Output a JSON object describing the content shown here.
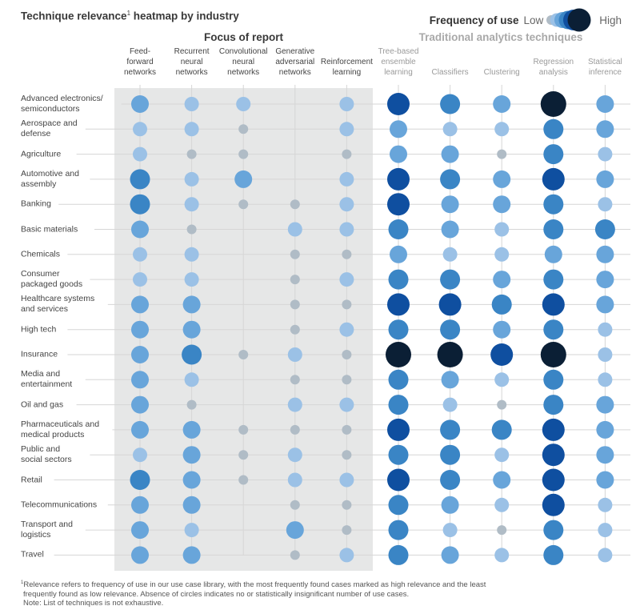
{
  "title": "Technique relevance",
  "title_sup": "1",
  "title_rest": " heatmap by industry",
  "legend": {
    "label": "Frequency of use",
    "low": "Low",
    "high": "High",
    "levels": [
      1,
      2,
      3,
      4,
      5,
      6
    ]
  },
  "groups": {
    "focus": "Focus of report",
    "traditional": "Traditional analytics techniques"
  },
  "colors": {
    "level1": "#b0bcc6",
    "level2": "#9bc1e6",
    "level3": "#68a5da",
    "level4": "#3a85c5",
    "level5": "#0f4fa0",
    "level6": "#0b1f35",
    "panel": "#e6e7e7",
    "gridline": "#d6d6d6"
  },
  "chart_data": {
    "type": "heatmap",
    "title": "Technique relevance heatmap by industry",
    "value_scale": "Frequency of use: 0 = absent, 1 = low ... 6 = high",
    "columns": [
      {
        "name": "Feed-forward networks",
        "lines": [
          "Feed-",
          "forward",
          "networks"
        ],
        "group": "focus"
      },
      {
        "name": "Recurrent neural networks",
        "lines": [
          "Recurrent",
          "neural",
          "networks"
        ],
        "group": "focus"
      },
      {
        "name": "Convolutional neural networks",
        "lines": [
          "Convolutional",
          "neural",
          "networks"
        ],
        "group": "focus"
      },
      {
        "name": "Generative adversarial networks",
        "lines": [
          "Generative",
          "adversarial",
          "networks"
        ],
        "group": "focus"
      },
      {
        "name": "Reinforcement learning",
        "lines": [
          "Reinforcement",
          "learning"
        ],
        "group": "focus"
      },
      {
        "name": "Tree-based ensemble learning",
        "lines": [
          "Tree-based",
          "ensemble",
          "learning"
        ],
        "group": "traditional"
      },
      {
        "name": "Classifiers",
        "lines": [
          "Classifiers"
        ],
        "group": "traditional"
      },
      {
        "name": "Clustering",
        "lines": [
          "Clustering"
        ],
        "group": "traditional"
      },
      {
        "name": "Regression analysis",
        "lines": [
          "Regression",
          "analysis"
        ],
        "group": "traditional"
      },
      {
        "name": "Statistical inference",
        "lines": [
          "Statistical",
          "inference"
        ],
        "group": "traditional"
      }
    ],
    "rows": [
      {
        "industry": "Advanced electronics/ semiconductors",
        "lines": [
          "Advanced electronics/",
          "semiconductors"
        ],
        "values": [
          3,
          2,
          2,
          0,
          2,
          5,
          4,
          3,
          6,
          3
        ]
      },
      {
        "industry": "Aerospace and defense",
        "lines": [
          "Aerospace and",
          "defense"
        ],
        "values": [
          2,
          2,
          1,
          0,
          2,
          3,
          2,
          2,
          4,
          3
        ]
      },
      {
        "industry": "Agriculture",
        "lines": [
          "Agriculture"
        ],
        "values": [
          2,
          1,
          1,
          0,
          1,
          3,
          3,
          1,
          4,
          2
        ]
      },
      {
        "industry": "Automotive and assembly",
        "lines": [
          "Automotive and",
          "assembly"
        ],
        "values": [
          4,
          2,
          3,
          0,
          2,
          5,
          4,
          3,
          5,
          3
        ]
      },
      {
        "industry": "Banking",
        "lines": [
          "Banking"
        ],
        "values": [
          4,
          2,
          1,
          1,
          2,
          5,
          3,
          3,
          4,
          2
        ]
      },
      {
        "industry": "Basic materials",
        "lines": [
          "Basic materials"
        ],
        "values": [
          3,
          1,
          0,
          2,
          2,
          4,
          3,
          2,
          4,
          4
        ]
      },
      {
        "industry": "Chemicals",
        "lines": [
          "Chemicals"
        ],
        "values": [
          2,
          2,
          0,
          1,
          1,
          3,
          2,
          2,
          3,
          3
        ]
      },
      {
        "industry": "Consumer packaged goods",
        "lines": [
          "Consumer",
          "packaged goods"
        ],
        "values": [
          2,
          2,
          0,
          1,
          2,
          4,
          4,
          3,
          4,
          3
        ]
      },
      {
        "industry": "Healthcare systems and services",
        "lines": [
          "Healthcare systems",
          "and services"
        ],
        "values": [
          3,
          3,
          0,
          1,
          1,
          5,
          5,
          4,
          5,
          3
        ]
      },
      {
        "industry": "High tech",
        "lines": [
          "High tech"
        ],
        "values": [
          3,
          3,
          0,
          1,
          2,
          4,
          4,
          3,
          4,
          2
        ]
      },
      {
        "industry": "Insurance",
        "lines": [
          "Insurance"
        ],
        "values": [
          3,
          4,
          1,
          2,
          1,
          6,
          6,
          5,
          6,
          2
        ]
      },
      {
        "industry": "Media and entertainment",
        "lines": [
          "Media and",
          "entertainment"
        ],
        "values": [
          3,
          2,
          0,
          1,
          1,
          4,
          3,
          2,
          4,
          2
        ]
      },
      {
        "industry": "Oil and gas",
        "lines": [
          "Oil and gas"
        ],
        "values": [
          3,
          1,
          0,
          2,
          2,
          4,
          2,
          1,
          4,
          3
        ]
      },
      {
        "industry": "Pharmaceuticals and medical products",
        "lines": [
          "Pharmaceuticals and",
          "medical products"
        ],
        "values": [
          3,
          3,
          1,
          1,
          1,
          5,
          4,
          4,
          5,
          3
        ]
      },
      {
        "industry": "Public and social sectors",
        "lines": [
          "Public and",
          "social sectors"
        ],
        "values": [
          2,
          3,
          1,
          2,
          1,
          4,
          4,
          2,
          5,
          3
        ]
      },
      {
        "industry": "Retail",
        "lines": [
          "Retail"
        ],
        "values": [
          4,
          3,
          1,
          2,
          2,
          5,
          4,
          3,
          5,
          3
        ]
      },
      {
        "industry": "Telecommunications",
        "lines": [
          "Telecommunications"
        ],
        "values": [
          3,
          3,
          0,
          1,
          1,
          4,
          3,
          2,
          5,
          2
        ]
      },
      {
        "industry": "Transport and logistics",
        "lines": [
          "Transport and",
          "logistics"
        ],
        "values": [
          3,
          2,
          0,
          3,
          1,
          4,
          2,
          1,
          4,
          2
        ]
      },
      {
        "industry": "Travel",
        "lines": [
          "Travel"
        ],
        "values": [
          3,
          3,
          0,
          1,
          2,
          4,
          3,
          2,
          4,
          2
        ]
      }
    ]
  },
  "footnote": {
    "sup": "1",
    "line1": "Relevance refers to frequency of use in our use case library, with the most frequently found cases marked as high relevance and the least",
    "line2": "frequently found as low relevance. Absence of circles indicates no or statistically insignificant number of use cases.",
    "line3": "Note: List of techniques is not exhaustive."
  }
}
